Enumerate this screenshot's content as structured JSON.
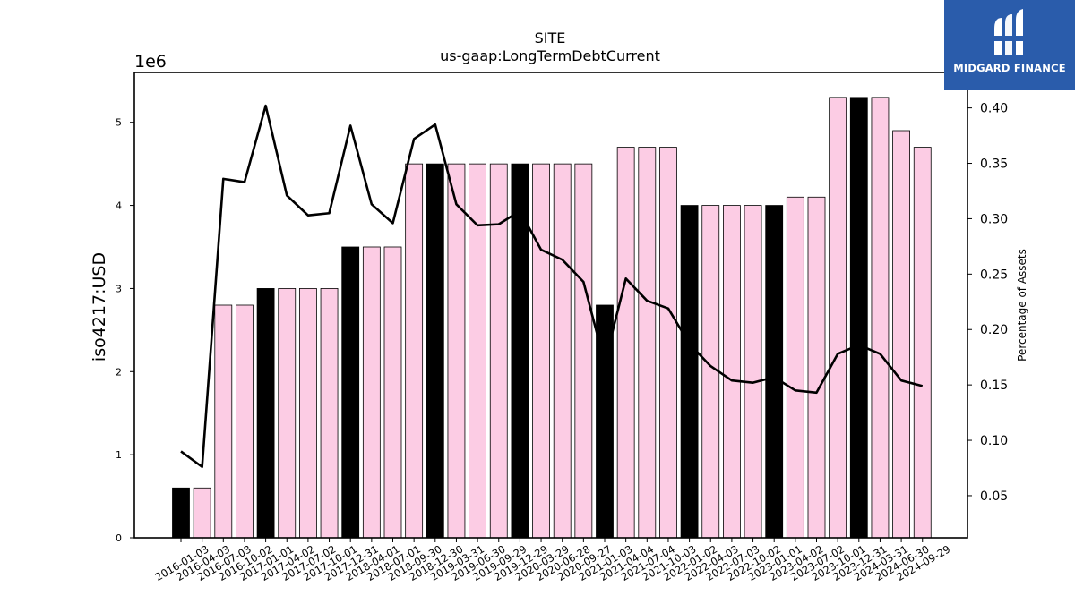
{
  "chart_data": {
    "type": "bar",
    "title": "SITE",
    "subtitle": "us-gaap:LongTermDebtCurrent",
    "ylabel": "iso4217:USD",
    "y_offset_label": "1e6",
    "y2label": "Percentage of Assets",
    "ylim": [
      0,
      5.6
    ],
    "y2lim": [
      0.012,
      0.432
    ],
    "y_ticks": [
      "0",
      "1",
      "2",
      "3",
      "4",
      "5"
    ],
    "y2_ticks": [
      "0.05",
      "0.10",
      "0.15",
      "0.20",
      "0.25",
      "0.30",
      "0.35",
      "0.40"
    ],
    "grid": false,
    "categories": [
      "2016-01-03",
      "2016-04-03",
      "2016-07-03",
      "2016-10-02",
      "2017-01-01",
      "2017-04-02",
      "2017-07-02",
      "2017-10-01",
      "2017-12-31",
      "2018-04-01",
      "2018-07-01",
      "2018-09-30",
      "2018-12-30",
      "2019-03-31",
      "2019-06-30",
      "2019-09-29",
      "2019-12-29",
      "2020-03-29",
      "2020-06-28",
      "2020-09-27",
      "2021-01-03",
      "2021-04-04",
      "2021-07-04",
      "2021-10-03",
      "2022-01-02",
      "2022-04-03",
      "2022-07-03",
      "2022-10-02",
      "2023-01-01",
      "2023-04-02",
      "2023-07-02",
      "2023-10-01",
      "2023-12-31",
      "2024-03-31",
      "2024-06-30",
      "2024-09-29"
    ],
    "series": [
      {
        "type": "bar",
        "values": [
          0.6,
          0.6,
          2.8,
          2.8,
          3.0,
          3.0,
          3.0,
          3.0,
          3.5,
          3.5,
          3.5,
          4.5,
          4.5,
          4.5,
          4.5,
          4.5,
          4.5,
          4.5,
          4.5,
          4.5,
          2.8,
          4.7,
          4.7,
          4.7,
          4.0,
          4.0,
          4.0,
          4.0,
          4.0,
          4.1,
          4.1,
          5.3,
          5.3,
          5.3,
          4.9,
          4.7
        ],
        "highlight": [
          true,
          false,
          false,
          false,
          true,
          false,
          false,
          false,
          true,
          false,
          false,
          false,
          true,
          false,
          false,
          false,
          true,
          false,
          false,
          false,
          true,
          false,
          false,
          false,
          true,
          false,
          false,
          false,
          true,
          false,
          false,
          false,
          true,
          false,
          false,
          false
        ]
      },
      {
        "type": "line",
        "axis": "right",
        "values": [
          0.09,
          0.076,
          0.336,
          0.333,
          0.402,
          0.321,
          0.303,
          0.305,
          0.384,
          0.313,
          0.296,
          0.372,
          0.385,
          0.313,
          0.294,
          0.295,
          0.307,
          0.272,
          0.263,
          0.243,
          0.17,
          0.246,
          0.226,
          0.219,
          0.187,
          0.167,
          0.154,
          0.152,
          0.157,
          0.145,
          0.143,
          0.178,
          0.186,
          0.178,
          0.154,
          0.149
        ]
      }
    ],
    "colors": {
      "bar": "#fccce4",
      "bar_highlight": "#000000",
      "line": "#000000",
      "edge": "#000000"
    }
  },
  "logo": {
    "text": "MIDGARD FINANCE",
    "background": "#2a5cab"
  }
}
